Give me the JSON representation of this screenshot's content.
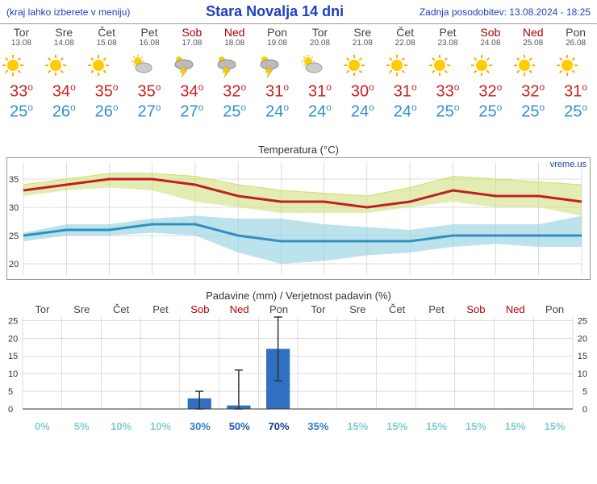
{
  "header": {
    "menu_note": "(kraj lahko izberete v meniju)",
    "title": "Stara Novalja 14 dni",
    "updated": "Zadnja posodobitev: 13.08.2024 - 18:25"
  },
  "attribution": "vreme.us",
  "days": [
    {
      "name": "Tor",
      "date": "13.08",
      "weekend": false,
      "icon": "sun",
      "hi": 33,
      "lo": 25,
      "prob": 0,
      "prob_color": "#80d0d0",
      "precip": 0,
      "err_lo": 0,
      "err_hi": 0
    },
    {
      "name": "Sre",
      "date": "14.08",
      "weekend": false,
      "icon": "sun",
      "hi": 34,
      "lo": 26,
      "prob": 5,
      "prob_color": "#80d0d0",
      "precip": 0,
      "err_lo": 0,
      "err_hi": 0
    },
    {
      "name": "Čet",
      "date": "15.08",
      "weekend": false,
      "icon": "sun",
      "hi": 35,
      "lo": 26,
      "prob": 10,
      "prob_color": "#80d0d0",
      "precip": 0,
      "err_lo": 0,
      "err_hi": 0
    },
    {
      "name": "Pet",
      "date": "16.08",
      "weekend": false,
      "icon": "cloud",
      "hi": 35,
      "lo": 27,
      "prob": 10,
      "prob_color": "#80d0d0",
      "precip": 0,
      "err_lo": 0,
      "err_hi": 0
    },
    {
      "name": "Sob",
      "date": "17.08",
      "weekend": true,
      "icon": "storm",
      "hi": 34,
      "lo": 27,
      "prob": 30,
      "prob_color": "#3080c0",
      "precip": 3,
      "err_lo": 0,
      "err_hi": 5
    },
    {
      "name": "Ned",
      "date": "18.08",
      "weekend": true,
      "icon": "storm",
      "hi": 32,
      "lo": 25,
      "prob": 50,
      "prob_color": "#2060b0",
      "precip": 1,
      "err_lo": 0,
      "err_hi": 11
    },
    {
      "name": "Pon",
      "date": "19.08",
      "weekend": false,
      "icon": "storm",
      "hi": 31,
      "lo": 24,
      "prob": 70,
      "prob_color": "#104090",
      "precip": 17,
      "err_lo": 8,
      "err_hi": 26
    },
    {
      "name": "Tor",
      "date": "20.08",
      "weekend": false,
      "icon": "cloud",
      "hi": 31,
      "lo": 24,
      "prob": 35,
      "prob_color": "#3080c0",
      "precip": 0,
      "err_lo": 0,
      "err_hi": 0
    },
    {
      "name": "Sre",
      "date": "21.08",
      "weekend": false,
      "icon": "sun",
      "hi": 30,
      "lo": 24,
      "prob": 15,
      "prob_color": "#80d0d0",
      "precip": 0,
      "err_lo": 0,
      "err_hi": 0
    },
    {
      "name": "Čet",
      "date": "22.08",
      "weekend": false,
      "icon": "sun",
      "hi": 31,
      "lo": 24,
      "prob": 15,
      "prob_color": "#80d0d0",
      "precip": 0,
      "err_lo": 0,
      "err_hi": 0
    },
    {
      "name": "Pet",
      "date": "23.08",
      "weekend": false,
      "icon": "sun",
      "hi": 33,
      "lo": 25,
      "prob": 15,
      "prob_color": "#80d0d0",
      "precip": 0,
      "err_lo": 0,
      "err_hi": 0
    },
    {
      "name": "Sob",
      "date": "24.08",
      "weekend": true,
      "icon": "sun",
      "hi": 32,
      "lo": 25,
      "prob": 15,
      "prob_color": "#80d0d0",
      "precip": 0,
      "err_lo": 0,
      "err_hi": 0
    },
    {
      "name": "Ned",
      "date": "25.08",
      "weekend": true,
      "icon": "sun",
      "hi": 32,
      "lo": 25,
      "prob": 15,
      "prob_color": "#80d0d0",
      "precip": 0,
      "err_lo": 0,
      "err_hi": 0
    },
    {
      "name": "Pon",
      "date": "26.08",
      "weekend": false,
      "icon": "sun",
      "hi": 31,
      "lo": 25,
      "prob": 15,
      "prob_color": "#80d0d0",
      "precip": 0,
      "err_lo": 0,
      "err_hi": 0
    }
  ],
  "temp_chart": {
    "title": "Temperatura (°C)",
    "ylim": [
      18,
      38
    ],
    "yticks": [
      20,
      25,
      30,
      35
    ],
    "grid_color": "#bbb",
    "background": "#ffffff",
    "hi_line_color": "#c02020",
    "lo_line_color": "#3090c0",
    "hi_band_color": "#d0e080",
    "lo_band_color": "#90d0e0",
    "hi_series": [
      33,
      34,
      35,
      35,
      34,
      32,
      31,
      31,
      30,
      31,
      33,
      32,
      32,
      31
    ],
    "hi_band_lo": [
      32,
      33,
      33.5,
      33,
      31,
      30,
      29,
      29,
      29,
      30,
      31,
      30,
      30,
      28.5
    ],
    "hi_band_hi": [
      34,
      35,
      36,
      36,
      35.5,
      34,
      33,
      32.5,
      32,
      33.5,
      35.5,
      35,
      34.5,
      34
    ],
    "lo_series": [
      25,
      26,
      26,
      27,
      27,
      25,
      24,
      24,
      24,
      24,
      25,
      25,
      25,
      25
    ],
    "lo_band_lo": [
      24,
      25,
      25,
      25.5,
      25,
      22,
      20,
      20.5,
      21.5,
      22,
      23,
      23.5,
      23,
      23
    ],
    "lo_band_hi": [
      25.5,
      27,
      27,
      28,
      28.5,
      28,
      28,
      27,
      26.5,
      26,
      27,
      27,
      27,
      28.5
    ],
    "line_width_main": 3,
    "line_width_band": 1
  },
  "precip_chart": {
    "title": "Padavine (mm) / Verjetnost padavin (%)",
    "ylim": [
      0,
      26
    ],
    "yticks": [
      0,
      5,
      10,
      15,
      20,
      25
    ],
    "grid_color": "#bbb",
    "bar_color": "#3070c0",
    "bar_width": 0.6,
    "err_color": "#333"
  }
}
